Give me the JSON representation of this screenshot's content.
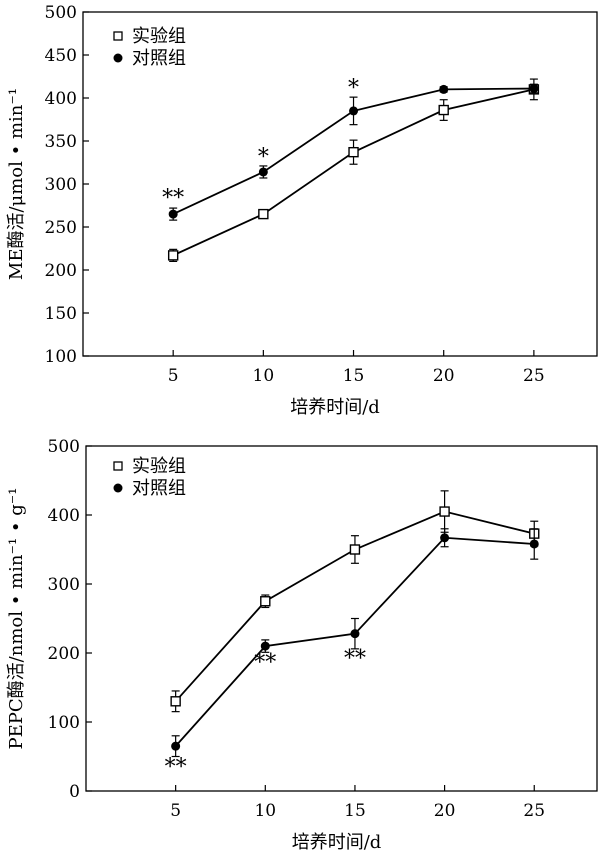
{
  "chart_data": [
    {
      "type": "line",
      "x": [
        5,
        10,
        15,
        20,
        25
      ],
      "xticks": [
        "5",
        "10",
        "15",
        "20",
        "25"
      ],
      "xlabel": "培养时间/d",
      "ylabel": "ME酶活/μmol • min⁻¹",
      "ylim": [
        100,
        500
      ],
      "yticks": [
        100,
        150,
        200,
        250,
        300,
        350,
        400,
        450,
        500
      ],
      "xlim": [
        0,
        28.5
      ],
      "legend_position": "top-left",
      "series": [
        {
          "name": "实验组",
          "marker": "open-square",
          "values": [
            217,
            265,
            337,
            386,
            410
          ],
          "errors": [
            7,
            3,
            14,
            12,
            12
          ]
        },
        {
          "name": "对照组",
          "marker": "filled-circle",
          "values": [
            265,
            314,
            385,
            410,
            411
          ],
          "errors": [
            7,
            7,
            16,
            3,
            5
          ]
        }
      ],
      "annotations": [
        {
          "x": 5,
          "text": "**",
          "position": "above",
          "y": 273
        },
        {
          "x": 10,
          "text": "*",
          "position": "above",
          "y": 321
        },
        {
          "x": 15,
          "text": "*",
          "position": "above",
          "y": 401
        }
      ]
    },
    {
      "type": "line",
      "x": [
        5,
        10,
        15,
        20,
        25
      ],
      "xticks": [
        "5",
        "10",
        "15",
        "20",
        "25"
      ],
      "xlabel": "培养时间/d",
      "ylabel": "PEPC酶活/nmol • min⁻¹ • g⁻¹",
      "ylim": [
        0,
        500
      ],
      "yticks": [
        0,
        100,
        200,
        300,
        400,
        500
      ],
      "xlim": [
        0,
        28.5
      ],
      "legend_position": "top-left",
      "series": [
        {
          "name": "实验组",
          "marker": "open-square",
          "values": [
            130,
            275,
            350,
            405,
            373
          ],
          "errors": [
            15,
            9,
            20,
            30,
            18
          ]
        },
        {
          "name": "对照组",
          "marker": "filled-circle",
          "values": [
            65,
            210,
            228,
            367,
            358
          ],
          "errors": [
            15,
            9,
            22,
            13,
            22
          ]
        }
      ],
      "annotations": [
        {
          "x": 5,
          "text": "**",
          "position": "below",
          "y": 48
        },
        {
          "x": 10,
          "text": "**",
          "position": "below",
          "y": 199
        },
        {
          "x": 15,
          "text": "**",
          "position": "below",
          "y": 205
        }
      ]
    }
  ]
}
